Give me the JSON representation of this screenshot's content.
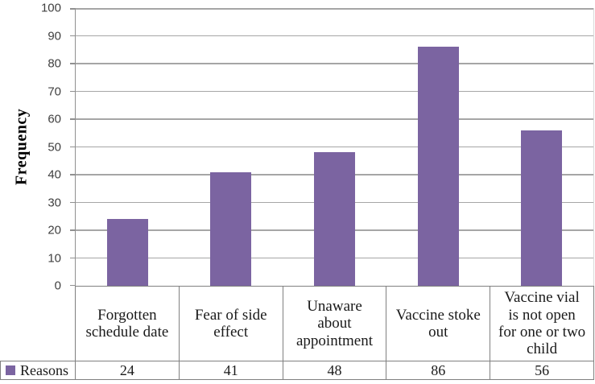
{
  "chart_data": {
    "type": "bar",
    "title": "",
    "xlabel": "",
    "ylabel": "Frequency",
    "categories": [
      "Forgotten schedule date",
      "Fear of side effect",
      "Unaware about appointment",
      "Vaccine stoke out",
      "Vaccine vial is not open for one or two child"
    ],
    "series": [
      {
        "name": "Reasons",
        "values": [
          24,
          41,
          48,
          86,
          56
        ]
      }
    ],
    "ylim": [
      0,
      100
    ],
    "yticks": [
      0,
      10,
      20,
      30,
      40,
      50,
      60,
      70,
      80,
      90,
      100
    ],
    "grid": "horizontal",
    "legend_position": "bottom-left-of-data-table",
    "data_table_shown": true
  },
  "colors": {
    "bar": "#7B64A1",
    "gridline": "#A6A6A6",
    "table_border": "#808080",
    "tick_text": "#404040",
    "label_text": "#1A1A1A"
  }
}
